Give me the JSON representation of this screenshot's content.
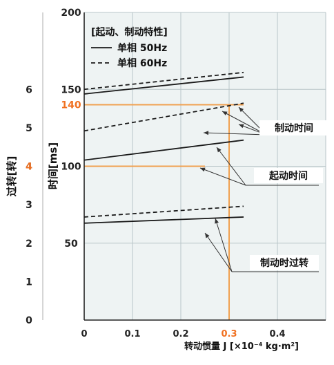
{
  "chart_data": {
    "type": "line",
    "legend": {
      "title": "[起动、制动特性]",
      "entries": [
        {
          "label": "单相 50Hz",
          "style": "solid"
        },
        {
          "label": "单相 60Hz",
          "style": "dashed"
        }
      ],
      "placement": "top-left"
    },
    "xlabel": "转动惯量 J  [×10⁻⁴ kg·m²]",
    "ylabel_time": "时间[ms]",
    "ylabel_turns": "过转[转]",
    "x_ticks": [
      "0",
      "0.1",
      "0.2",
      "0.3",
      "0.4"
    ],
    "x_highlight_tick": "0.3",
    "y_time_ticks": [
      "50",
      "100",
      "150",
      "200"
    ],
    "y_time_highlight_tick": "140",
    "y_turns_ticks": [
      "0",
      "1",
      "2",
      "3",
      "4",
      "5",
      "6"
    ],
    "y_turns_highlight_tick": "4",
    "xlim": [
      0,
      0.5
    ],
    "ylim_time": [
      0,
      200
    ],
    "ylim_turns": [
      0,
      8
    ],
    "grid": true,
    "colors": {
      "highlight": "#f0a050",
      "highlight_text": "#f07020",
      "line": "#1a1a1a",
      "grid": "#b8c4c8",
      "bg": "#eef3f3"
    },
    "curves": [
      {
        "group": "braking",
        "style": "solid",
        "axis": "time",
        "x": [
          0,
          0.33
        ],
        "y": [
          147,
          158
        ]
      },
      {
        "group": "braking",
        "style": "dashed",
        "axis": "time",
        "x": [
          0,
          0.33
        ],
        "y": [
          150,
          161
        ]
      },
      {
        "group": "starting",
        "style": "solid",
        "axis": "time",
        "x": [
          0,
          0.33
        ],
        "y": [
          104,
          117
        ]
      },
      {
        "group": "starting",
        "style": "dashed",
        "axis": "time",
        "x": [
          0,
          0.33
        ],
        "y": [
          123,
          141
        ]
      },
      {
        "group": "overrun",
        "style": "solid",
        "axis": "time",
        "x": [
          0,
          0.33
        ],
        "y": [
          63,
          67
        ]
      },
      {
        "group": "overrun",
        "style": "dashed",
        "axis": "time",
        "x": [
          0,
          0.33
        ],
        "y": [
          67,
          74
        ]
      }
    ],
    "guide": {
      "x": 0.3,
      "time": 140,
      "turns": 4
    },
    "annotations": [
      {
        "text": "制动时间",
        "group": "braking"
      },
      {
        "text": "起动时间",
        "group": "starting"
      },
      {
        "text": "制动时过转",
        "group": "overrun"
      }
    ]
  }
}
